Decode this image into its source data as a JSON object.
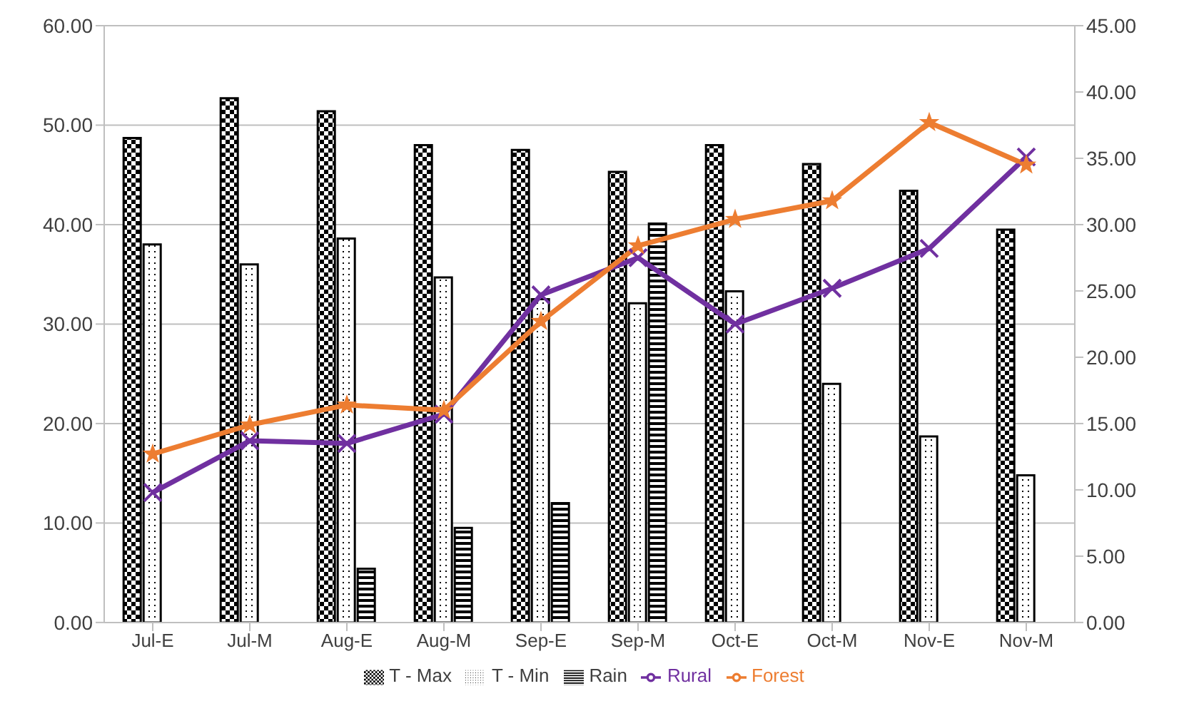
{
  "chart_data": {
    "type": "bar",
    "categories": [
      "Jul-E",
      "Jul-M",
      "Aug-E",
      "Aug-M",
      "Sep-E",
      "Sep-M",
      "Oct-E",
      "Oct-M",
      "Nov-E",
      "Nov-M"
    ],
    "series": [
      {
        "name": "T - Max",
        "color": "#000000",
        "values": [
          48.7,
          52.7,
          51.4,
          48.0,
          47.5,
          45.3,
          48.0,
          46.1,
          43.4,
          39.5
        ]
      },
      {
        "name": "T - Min",
        "color": "#000000",
        "values": [
          38.0,
          36.0,
          38.6,
          34.7,
          32.5,
          32.1,
          33.3,
          24.0,
          18.7,
          14.8
        ]
      },
      {
        "name": "Rain",
        "color": "#000000",
        "values": [
          null,
          null,
          5.4,
          9.5,
          12.0,
          40.1,
          null,
          null,
          null,
          null
        ]
      },
      {
        "name": "Rural",
        "type": "line",
        "axis": "y2",
        "color": "#7030a0",
        "marker": "cross",
        "values": [
          9.8,
          13.7,
          13.5,
          15.7,
          24.7,
          27.5,
          22.5,
          25.2,
          28.2,
          35.1
        ]
      },
      {
        "name": "Forest",
        "type": "line",
        "axis": "y2",
        "color": "#ed7d31",
        "marker": "star",
        "values": [
          12.7,
          14.9,
          16.4,
          16.0,
          22.7,
          28.4,
          30.4,
          31.8,
          37.7,
          34.5
        ]
      }
    ],
    "ylim": [
      0,
      60
    ],
    "yticks": [
      {
        "value": 0,
        "label": "0.00"
      },
      {
        "value": 10,
        "label": "10.00"
      },
      {
        "value": 20,
        "label": "20.00"
      },
      {
        "value": 30,
        "label": "30.00"
      },
      {
        "value": 40,
        "label": "40.00"
      },
      {
        "value": 50,
        "label": "50.00"
      },
      {
        "value": 60,
        "label": "60.00"
      }
    ],
    "y2lim": [
      0,
      45
    ],
    "y2ticks": [
      {
        "value": 0,
        "label": "0.00"
      },
      {
        "value": 5,
        "label": "5.00"
      },
      {
        "value": 10,
        "label": "10.00"
      },
      {
        "value": 15,
        "label": "15.00"
      },
      {
        "value": 20,
        "label": "20.00"
      },
      {
        "value": 25,
        "label": "25.00"
      },
      {
        "value": 30,
        "label": "30.00"
      },
      {
        "value": 35,
        "label": "35.00"
      },
      {
        "value": 40,
        "label": "40.00"
      },
      {
        "value": 45,
        "label": "45.00"
      }
    ],
    "grid": "y",
    "legend": "bottom"
  }
}
